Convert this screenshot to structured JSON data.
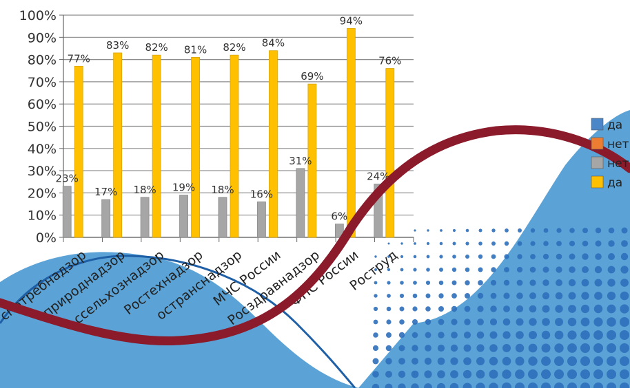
{
  "chart_data": {
    "type": "bar",
    "categories": [
      "Роспотребнадзор",
      "Росприроднадзор",
      "Россельхознадзор",
      "Ростехнадзор",
      "Ространснадзор",
      "МЧС России",
      "Росздравнадзор",
      "ФНС России",
      "Роструд"
    ],
    "category_labels_visible": [
      "спотребнадзор",
      "сприроднадзор",
      "ссельхознадзор",
      "Ростехнадзор",
      "остранснадзор",
      "МЧС России",
      "Росздравнадзор",
      "ФНС России",
      "Роструд"
    ],
    "series": [
      {
        "name": "да",
        "color": "#ffc000",
        "values": [
          77,
          83,
          82,
          81,
          82,
          84,
          69,
          94,
          76
        ],
        "labels": [
          "77%",
          "83%",
          "82%",
          "81%",
          "82%",
          "84%",
          "69%",
          "94%",
          "76%"
        ]
      },
      {
        "name": "нет",
        "color": "#a6a6a6",
        "values": [
          23,
          17,
          18,
          19,
          18,
          16,
          31,
          6,
          24
        ],
        "labels": [
          "23%",
          "17%",
          "18%",
          "19%",
          "18%",
          "16%",
          "31%",
          "6%",
          "24%"
        ]
      }
    ],
    "y_ticks": [
      "0%",
      "10%",
      "20%",
      "30%",
      "40%",
      "50%",
      "60%",
      "70%",
      "80%",
      "90%",
      "100%"
    ],
    "ylim": [
      0,
      100
    ],
    "grid": true,
    "legend": {
      "placement": "right",
      "entries": [
        {
          "label": "да",
          "color": "#4a86c8"
        },
        {
          "label": "нет",
          "color": "#ed7d31"
        },
        {
          "label": "нет",
          "color": "#a6a6a6"
        },
        {
          "label": "да",
          "color": "#ffc000"
        }
      ]
    }
  },
  "background": {
    "wave_color": "#5ba3d6",
    "curve_color": "#8b1a2b",
    "line_color": "#1f5fa6",
    "dot_color": "#2e6fba"
  }
}
